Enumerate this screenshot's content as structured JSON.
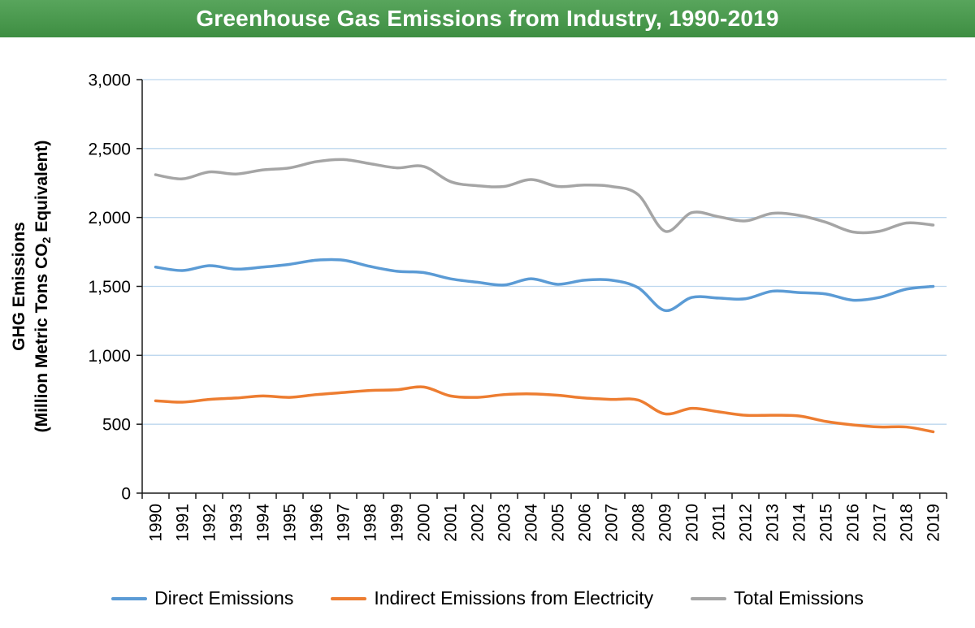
{
  "header": {
    "title": "Greenhouse Gas Emissions from Industry, 1990-2019",
    "bg_top": "#58A55C",
    "bg_bottom": "#3E8E42",
    "text_color": "#FFFFFF"
  },
  "chart_data": {
    "type": "line",
    "title": "Greenhouse Gas Emissions from Industry, 1990-2019",
    "ylabel_line1": "GHG Emissions",
    "ylabel_line2": {
      "pre": "(Million Metric Tons CO",
      "sub": "2",
      "post": " Equivalent)"
    },
    "xlabel": "",
    "ylim": [
      0,
      3000
    ],
    "yticks": [
      0,
      500,
      1000,
      1500,
      2000,
      2500,
      3000
    ],
    "ytick_labels": [
      "0",
      "500",
      "1,000",
      "1,500",
      "2,000",
      "2,500",
      "3,000"
    ],
    "grid": true,
    "gridline_color": "#BDD7EE",
    "axis_color": "#1A1A1A",
    "legend_position": "bottom",
    "x": [
      1990,
      1991,
      1992,
      1993,
      1994,
      1995,
      1996,
      1997,
      1998,
      1999,
      2000,
      2001,
      2002,
      2003,
      2004,
      2005,
      2006,
      2007,
      2008,
      2009,
      2010,
      2011,
      2012,
      2013,
      2014,
      2015,
      2016,
      2017,
      2018,
      2019
    ],
    "series": [
      {
        "name": "Direct Emissions",
        "color": "#5B9BD5",
        "values": [
          1640,
          1615,
          1650,
          1625,
          1640,
          1660,
          1690,
          1690,
          1645,
          1610,
          1600,
          1555,
          1530,
          1510,
          1555,
          1515,
          1545,
          1545,
          1490,
          1325,
          1420,
          1415,
          1410,
          1465,
          1455,
          1445,
          1400,
          1420,
          1480,
          1500
        ]
      },
      {
        "name": "Indirect Emissions from Electricity",
        "color": "#ED7D31",
        "values": [
          670,
          660,
          680,
          690,
          705,
          695,
          715,
          730,
          745,
          750,
          770,
          705,
          695,
          715,
          720,
          710,
          690,
          680,
          675,
          575,
          615,
          590,
          565,
          565,
          560,
          520,
          495,
          480,
          480,
          445
        ]
      },
      {
        "name": "Total Emissions",
        "color": "#A5A5A5",
        "values": [
          2310,
          2280,
          2330,
          2315,
          2345,
          2360,
          2405,
          2420,
          2390,
          2360,
          2370,
          2260,
          2230,
          2225,
          2275,
          2225,
          2235,
          2225,
          2165,
          1900,
          2035,
          2005,
          1975,
          2030,
          2015,
          1965,
          1895,
          1900,
          1960,
          1945
        ]
      }
    ]
  }
}
